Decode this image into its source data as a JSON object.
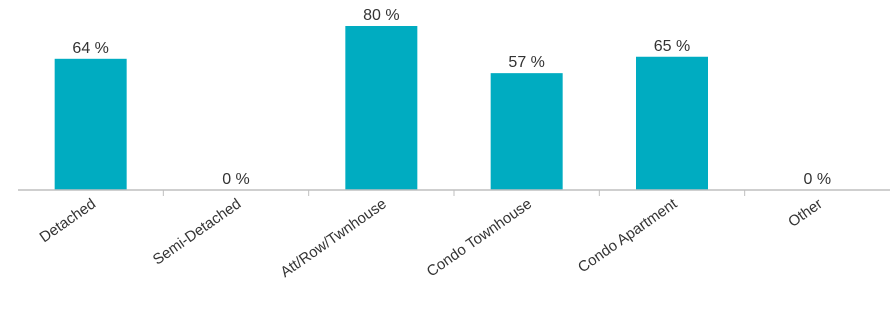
{
  "chart_data": {
    "type": "bar",
    "categories": [
      "Detached",
      "Semi-Detached",
      "Att/Row/Twnhouse",
      "Condo Townhouse",
      "Condo Apartment",
      "Other"
    ],
    "values": [
      64,
      0,
      80,
      57,
      65,
      0
    ],
    "value_labels": [
      "64 %",
      "0 %",
      "80 %",
      "57 %",
      "65 %",
      "0 %"
    ],
    "ylim": [
      0,
      100
    ],
    "grid": false,
    "legend": "none",
    "colors": {
      "bar": "#00ACC1",
      "axis": "#BFBFBF",
      "text": "#333333"
    }
  }
}
